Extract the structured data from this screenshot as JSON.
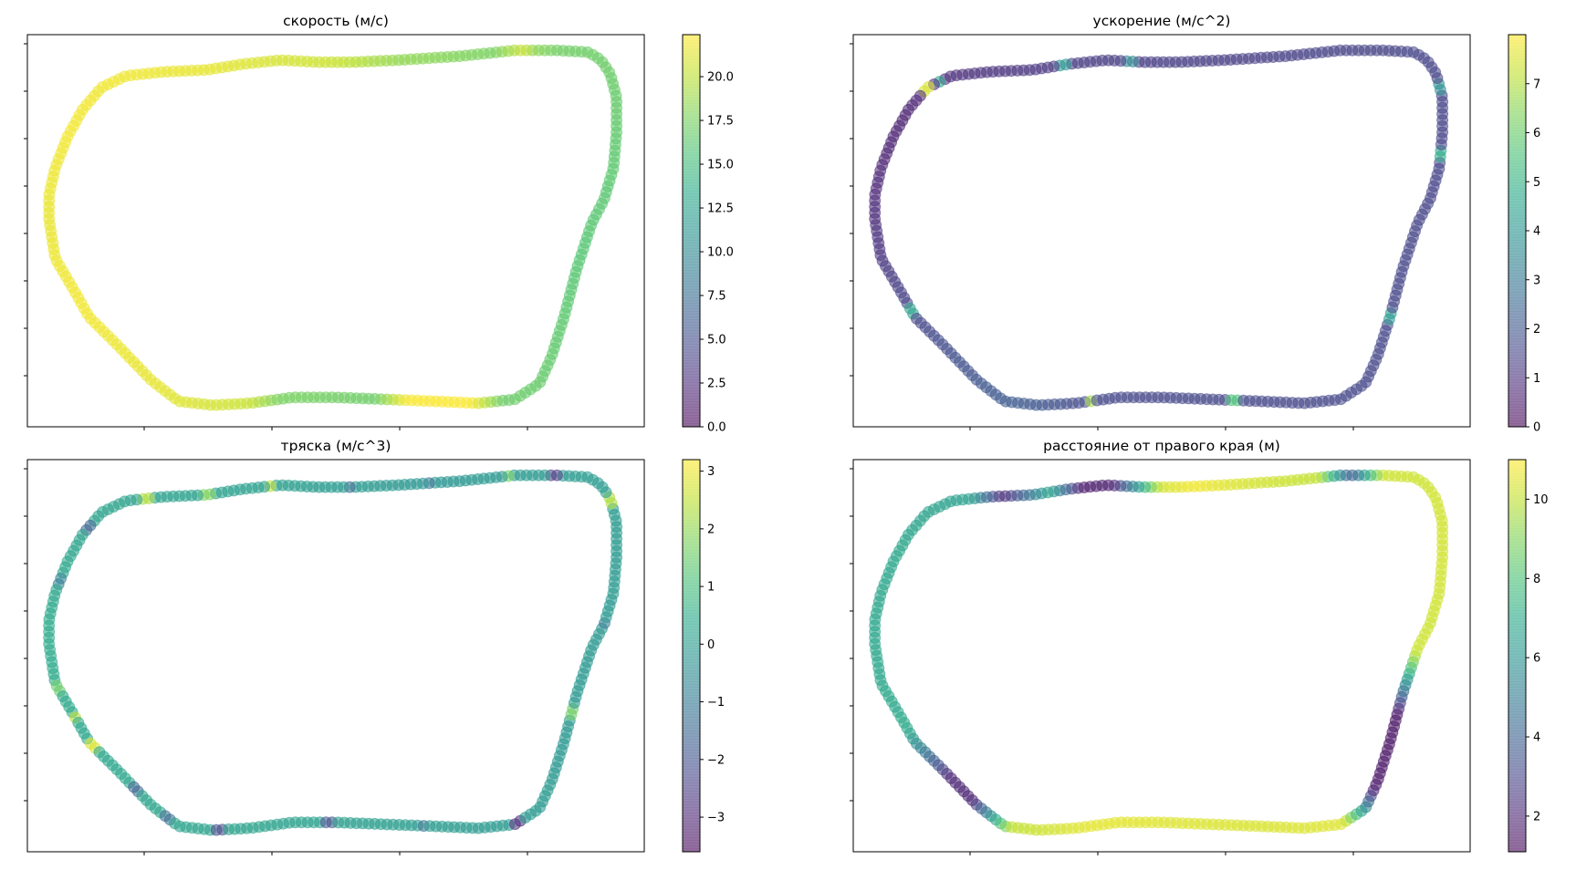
{
  "chart_data": [
    {
      "type": "scatter",
      "title": "скорость (м/с)",
      "colormap": "viridis",
      "marker_alpha": 0.55,
      "xlabel": "",
      "ylabel": "",
      "colorbar": {
        "range": [
          0.0,
          22.4
        ],
        "ticks": [
          0.0,
          2.5,
          5.0,
          7.5,
          10.0,
          12.5,
          15.0,
          17.5,
          20.0
        ],
        "tick_labels": [
          "0.0",
          "2.5",
          "5.0",
          "7.5",
          "10.0",
          "12.5",
          "15.0",
          "17.5",
          "20.0"
        ]
      },
      "color_profile": [
        [
          0.0,
          21.6
        ],
        [
          0.06,
          22.0
        ],
        [
          0.13,
          21.5
        ],
        [
          0.19,
          20.5
        ],
        [
          0.21,
          17.5
        ],
        [
          0.27,
          17.0
        ],
        [
          0.29,
          22.2
        ],
        [
          0.33,
          22.3
        ],
        [
          0.35,
          17.0
        ],
        [
          0.4,
          16.5
        ],
        [
          0.46,
          16.0
        ],
        [
          0.52,
          16.3
        ],
        [
          0.59,
          17.0
        ],
        [
          0.62,
          17.2
        ],
        [
          0.635,
          18.5
        ],
        [
          0.64,
          20.5
        ],
        [
          0.66,
          17.5
        ],
        [
          0.72,
          18.5
        ],
        [
          0.76,
          20.5
        ],
        [
          0.8,
          21.0
        ],
        [
          0.84,
          21.5
        ],
        [
          0.88,
          21.8
        ],
        [
          0.94,
          22.0
        ],
        [
          1.0,
          21.6
        ]
      ],
      "anomalies": []
    },
    {
      "type": "scatter",
      "title": "ускорение (м/с^2)",
      "colormap": "viridis",
      "marker_alpha": 0.55,
      "xlabel": "",
      "ylabel": "",
      "colorbar": {
        "range": [
          0,
          8.0
        ],
        "ticks": [
          0,
          1,
          2,
          3,
          4,
          5,
          6,
          7
        ],
        "tick_labels": [
          "0",
          "1",
          "2",
          "3",
          "4",
          "5",
          "6",
          "7"
        ]
      },
      "color_profile": [
        [
          0.0,
          0.9
        ],
        [
          0.05,
          1.4
        ],
        [
          0.1,
          1.8
        ],
        [
          0.15,
          2.2
        ],
        [
          0.2,
          1.6
        ],
        [
          0.3,
          1.6
        ],
        [
          0.4,
          1.6
        ],
        [
          0.5,
          1.5
        ],
        [
          0.6,
          1.5
        ],
        [
          0.7,
          1.4
        ],
        [
          0.8,
          1.3
        ],
        [
          0.88,
          1.0
        ],
        [
          0.94,
          0.6
        ],
        [
          1.0,
          0.9
        ]
      ],
      "anomalies": [
        [
          0.062,
          4.5
        ],
        [
          0.2,
          6.8
        ],
        [
          0.29,
          5.5
        ],
        [
          0.42,
          4.2
        ],
        [
          0.53,
          4.8
        ],
        [
          0.57,
          3.8
        ],
        [
          0.78,
          3.5
        ],
        [
          0.82,
          4.0
        ],
        [
          0.91,
          7.5
        ],
        [
          0.9,
          4.5
        ]
      ]
    },
    {
      "type": "scatter",
      "title": "тряска (м/с^3)",
      "colormap": "viridis",
      "marker_alpha": 0.55,
      "xlabel": "",
      "ylabel": "",
      "colorbar": {
        "range": [
          -3.6,
          3.2
        ],
        "ticks": [
          -3,
          -2,
          -1,
          0,
          1,
          2,
          3
        ],
        "tick_labels": [
          "−3",
          "−2",
          "−1",
          "0",
          "1",
          "2",
          "3"
        ]
      },
      "color_profile": [
        [
          0.0,
          0.4
        ],
        [
          0.1,
          0.3
        ],
        [
          0.2,
          0.2
        ],
        [
          0.3,
          0.0
        ],
        [
          0.4,
          -0.1
        ],
        [
          0.5,
          -0.1
        ],
        [
          0.6,
          0.0
        ],
        [
          0.7,
          -0.2
        ],
        [
          0.8,
          0.1
        ],
        [
          0.9,
          0.2
        ],
        [
          1.0,
          0.4
        ]
      ],
      "anomalies": [
        [
          0.03,
          1.5
        ],
        [
          0.05,
          2.4
        ],
        [
          0.07,
          2.8
        ],
        [
          0.11,
          -1.5
        ],
        [
          0.135,
          -1.3
        ],
        [
          0.17,
          -2.2
        ],
        [
          0.24,
          -2.0
        ],
        [
          0.3,
          -1.2
        ],
        [
          0.36,
          -2.8
        ],
        [
          0.44,
          1.6
        ],
        [
          0.5,
          -1.0
        ],
        [
          0.58,
          2.3
        ],
        [
          0.62,
          -2.5
        ],
        [
          0.65,
          1.7
        ],
        [
          0.7,
          -1.2
        ],
        [
          0.75,
          -1.5
        ],
        [
          0.8,
          2.5
        ],
        [
          0.84,
          1.8
        ],
        [
          0.88,
          2.3
        ],
        [
          0.92,
          -1.5
        ],
        [
          0.96,
          -0.8
        ]
      ]
    },
    {
      "type": "scatter",
      "title": "расстояние от правого края (м)",
      "colormap": "viridis",
      "marker_alpha": 0.55,
      "xlabel": "",
      "ylabel": "",
      "colorbar": {
        "range": [
          1.1,
          11.0
        ],
        "ticks": [
          2,
          4,
          6,
          8,
          10
        ],
        "tick_labels": [
          "2",
          "4",
          "6",
          "8",
          "10"
        ]
      },
      "color_profile": [
        [
          0.0,
          6.8
        ],
        [
          0.06,
          6.9
        ],
        [
          0.1,
          2.0
        ],
        [
          0.12,
          1.9
        ],
        [
          0.15,
          10.0
        ],
        [
          0.2,
          10.6
        ],
        [
          0.3,
          10.4
        ],
        [
          0.36,
          10.5
        ],
        [
          0.39,
          1.6
        ],
        [
          0.44,
          1.5
        ],
        [
          0.48,
          10.2
        ],
        [
          0.55,
          10.3
        ],
        [
          0.62,
          10.2
        ],
        [
          0.64,
          3.5
        ],
        [
          0.66,
          10.0
        ],
        [
          0.7,
          10.3
        ],
        [
          0.74,
          10.8
        ],
        [
          0.76,
          10.3
        ],
        [
          0.79,
          1.8
        ],
        [
          0.81,
          1.6
        ],
        [
          0.83,
          6.8
        ],
        [
          0.86,
          2.0
        ],
        [
          0.88,
          6.5
        ],
        [
          0.94,
          6.8
        ],
        [
          1.0,
          6.8
        ]
      ],
      "anomalies": []
    }
  ]
}
